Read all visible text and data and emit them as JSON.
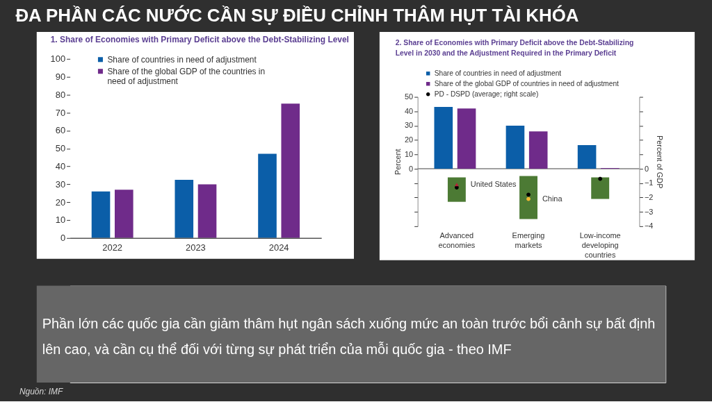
{
  "chart_data": [
    {
      "type": "other",
      "title": "ĐA PHẦN CÁC NƯỚC CẦN SỰ ĐIỀU CHỈNH THÂM HỤT TÀI KHÓA"
    },
    {
      "type": "bar",
      "title": "1. Share of Economies with Primary Deficit above the Debt-Stabilizing Level",
      "categories": [
        "2022",
        "2023",
        "2024"
      ],
      "series": [
        {
          "name": "Share of countries in need of adjustment",
          "color": "#0b5ea8",
          "values": [
            26,
            32.5,
            47
          ]
        },
        {
          "name": "Share of the global GDP of the countries in need of adjustment",
          "color": "#6f2b8a",
          "values": [
            27,
            30,
            75
          ]
        }
      ],
      "ylim": [
        0,
        100
      ],
      "yticks": [
        0,
        10,
        20,
        30,
        40,
        50,
        60,
        70,
        80,
        90,
        100
      ],
      "legend": "top left"
    },
    {
      "type": "bar",
      "title": "2. Share of Economies with Primary Deficit above the Debt-Stabilizing Level in 2030 and the Adjustment Required in the Primary Deficit",
      "categories": [
        "Advanced economies",
        "Emerging markets",
        "Low-income developing countries"
      ],
      "series": [
        {
          "name": "Share of countries in need of adjustment",
          "color": "#0b5ea8",
          "values": [
            43,
            30,
            16.5
          ]
        },
        {
          "name": "Share of the global GDP of countries in need of adjustment",
          "color": "#6f2b8a",
          "values": [
            42,
            26,
            0.5
          ]
        },
        {
          "type": "bar",
          "axis": "y2",
          "color": "#4c7a34",
          "base": [
            -0.6,
            -0.5,
            -0.6
          ],
          "values": [
            -1.7,
            -3.0,
            -1.5
          ]
        },
        {
          "name": "PD - DSPD (average; right scale)",
          "type": "scatter",
          "axis": "y2",
          "marker": "circle",
          "color": "#000000",
          "values": [
            -1.3,
            -1.8,
            -0.7
          ]
        },
        {
          "name": "United States",
          "type": "scatter",
          "axis": "y2",
          "marker": "triangle",
          "color": "#b5263a",
          "values": [
            -1.1,
            null,
            null
          ]
        },
        {
          "name": "China",
          "type": "scatter",
          "axis": "y2",
          "marker": "circle",
          "color": "#f2b632",
          "values": [
            null,
            -2.1,
            null
          ]
        }
      ],
      "ylabel": "Percent",
      "y2label": "Percent of GDP",
      "ylim": [
        -40,
        50
      ],
      "yticks": [
        {
          "value": -40,
          "label": null
        },
        {
          "value": -30,
          "label": null
        },
        {
          "value": -20,
          "label": null
        },
        {
          "value": -10,
          "label": null
        },
        0,
        10,
        20,
        30,
        40,
        50
      ],
      "y2lim": [
        -4,
        5
      ],
      "y2ticks": [
        -4,
        -3,
        -2,
        -1,
        0,
        {
          "value": 1,
          "label": null
        },
        {
          "value": 2,
          "label": null
        },
        {
          "value": 3,
          "label": null
        },
        {
          "value": 4,
          "label": null
        },
        {
          "value": 5,
          "label": null
        }
      ],
      "ref_lines": [
        {
          "axis": "y",
          "value": 0,
          "color": "#808080"
        }
      ],
      "legend": "top left"
    },
    {
      "type": "other",
      "annotations": [
        "Phần lớn các quốc gia cần giảm thâm hụt ngân sách xuống mức an toàn trước bổi cảnh sự bất định lên cao, và cần cụ thể đối với từng sự phát triển của mỗi quốc gia - theo IMF",
        "Nguồn: IMF"
      ]
    }
  ]
}
